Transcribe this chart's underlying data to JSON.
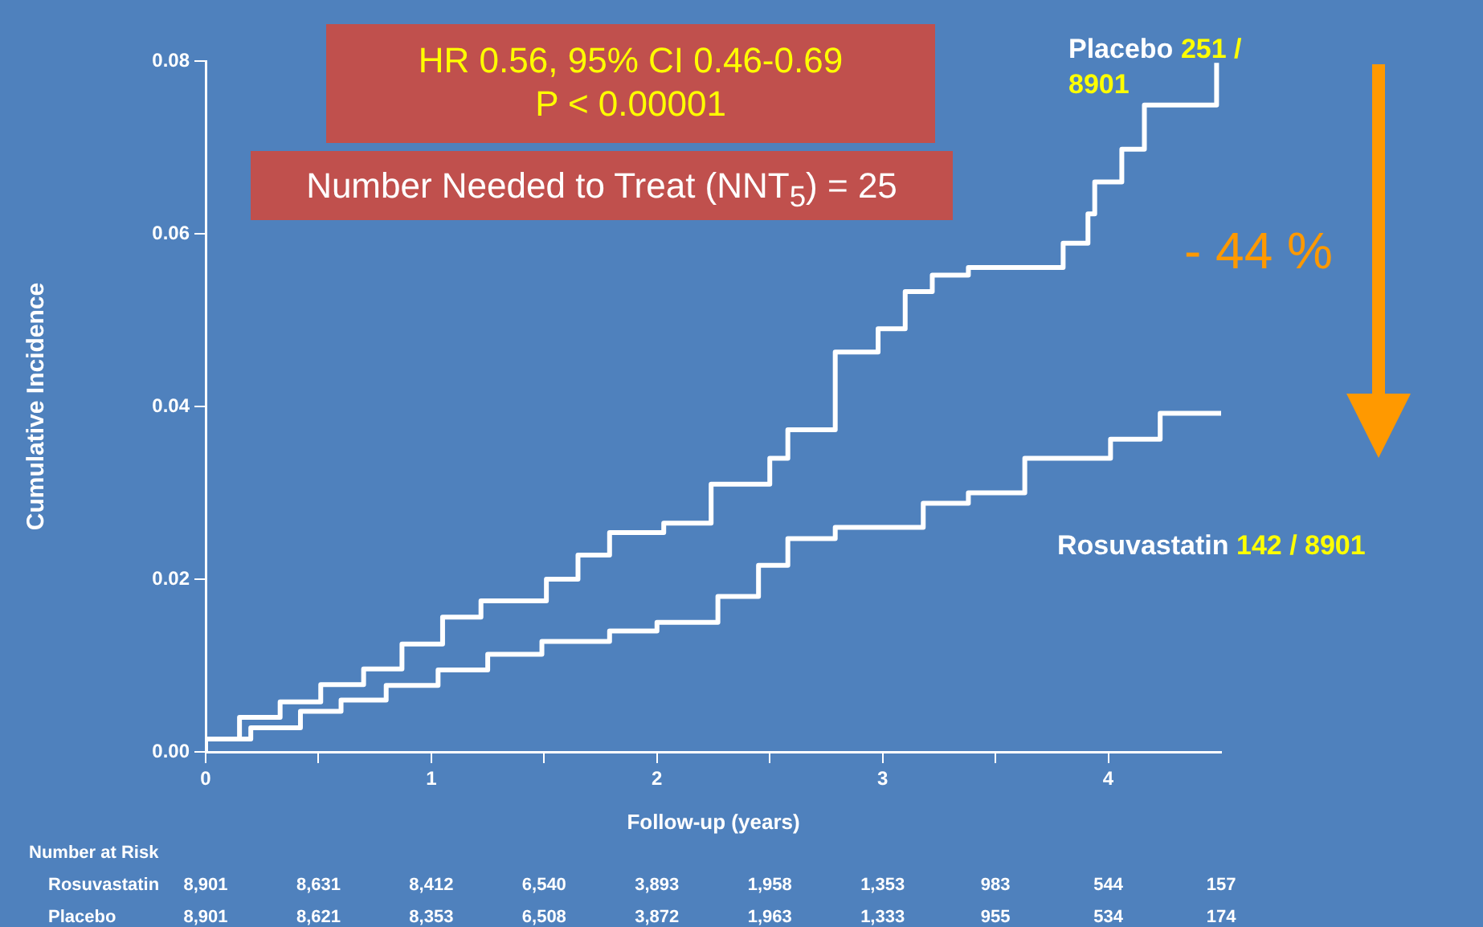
{
  "chart_data": {
    "type": "step",
    "xlabel": "Follow-up (years)",
    "ylabel": "Cumulative Incidence",
    "xlim": [
      0,
      4.5
    ],
    "xticks": [
      0,
      {
        "value": 0.5,
        "label": null
      },
      1,
      {
        "value": 1.5,
        "label": null
      },
      2,
      {
        "value": 2.5,
        "label": null
      },
      3,
      {
        "value": 3.5,
        "label": null
      },
      4
    ],
    "ylim": [
      0,
      0.08
    ],
    "yticks": [
      {
        "value": 0,
        "label": "0.00"
      },
      {
        "value": 0.02,
        "label": "0.02"
      },
      {
        "value": 0.04,
        "label": "0.04"
      },
      {
        "value": 0.06,
        "label": "0.06"
      },
      {
        "value": 0.08,
        "label": "0.08"
      }
    ],
    "grid": false,
    "legend": false,
    "marker": "none",
    "line_style": "solid",
    "series": [
      {
        "name": "Placebo",
        "color": "#ffffff",
        "x": [
          0,
          0.15,
          0.33,
          0.51,
          0.7,
          0.87,
          1.05,
          1.22,
          1.51,
          1.65,
          1.79,
          2.03,
          2.24,
          2.5,
          2.58,
          2.79,
          2.98,
          3.1,
          3.22,
          3.38,
          3.8,
          3.91,
          3.94,
          4.06,
          4.16,
          4.26,
          4.48,
          4.48
        ],
        "values": [
          0,
          0.0015,
          0.004,
          0.0058,
          0.0078,
          0.0096,
          0.0125,
          0.0156,
          0.0175,
          0.02,
          0.0228,
          0.0254,
          0.0265,
          0.031,
          0.034,
          0.0373,
          0.0463,
          0.049,
          0.0533,
          0.0552,
          0.0561,
          0.0589,
          0.0623,
          0.066,
          0.0698,
          0.0749,
          0.0749,
          0.0798
        ]
      },
      {
        "name": "Rosuvastatin",
        "color": "#ffffff",
        "x": [
          0,
          0.2,
          0.42,
          0.6,
          0.8,
          1.03,
          1.25,
          1.49,
          1.79,
          2.0,
          2.27,
          2.45,
          2.58,
          2.79,
          2.88,
          3.18,
          3.38,
          3.63,
          4.01,
          4.23,
          4.31,
          4.5
        ],
        "values": [
          0,
          0.0015,
          0.0028,
          0.0047,
          0.006,
          0.0077,
          0.0095,
          0.0113,
          0.0128,
          0.014,
          0.015,
          0.018,
          0.0216,
          0.0247,
          0.026,
          0.026,
          0.0288,
          0.03,
          0.034,
          0.0362,
          0.0392,
          0.0392
        ]
      }
    ],
    "annotations": [
      "HR 0.56, 95% CI 0.46-0.69",
      "P < 0.00001",
      "Number Needed to Treat (NNT$_{5}$) = 25",
      "- 44 %",
      "251 /",
      "8901",
      "142 / 8901",
      "Number at Risk",
      "Rosuvastatin",
      "8,901",
      "8,631",
      "8,412",
      "6,540",
      "3,893",
      "1,958",
      "1,353",
      "983",
      "544",
      "157",
      "Placebo",
      "8,901",
      "8,621",
      "8,353",
      "6,508",
      "3,872",
      "1,963",
      "1,333",
      "955",
      "534",
      "174"
    ]
  }
}
